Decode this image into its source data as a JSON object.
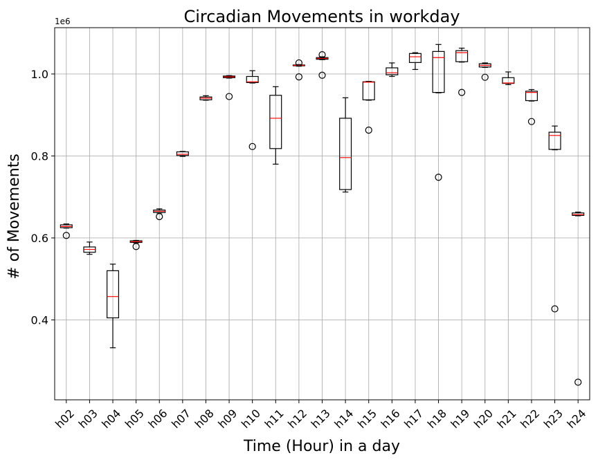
{
  "chart_data": {
    "type": "boxplot",
    "title": "Circadian Movements in workday",
    "xlabel": "Time (Hour) in a day",
    "ylabel": "# of Movements",
    "y_multiplier_label": "1e6",
    "ylim": [
      0.205,
      1.113
    ],
    "yticks": [
      0.4,
      0.6,
      0.8,
      1.0
    ],
    "ytick_labels": [
      "0.4",
      "0.6",
      "0.8",
      "1.0"
    ],
    "grid": true,
    "colors": {
      "box": "#000000",
      "median": "#ff0000",
      "grid": "#b0b0b0"
    },
    "boxes": [
      {
        "label": "h02",
        "whisker_low": 0.624,
        "q1": 0.625,
        "median": 0.628,
        "q3": 0.632,
        "whisker_high": 0.634,
        "outliers": [
          0.606
        ]
      },
      {
        "label": "h03",
        "whisker_low": 0.56,
        "q1": 0.565,
        "median": 0.572,
        "q3": 0.578,
        "whisker_high": 0.59,
        "outliers": []
      },
      {
        "label": "h04",
        "whisker_low": 0.332,
        "q1": 0.405,
        "median": 0.457,
        "q3": 0.52,
        "whisker_high": 0.536,
        "outliers": []
      },
      {
        "label": "h05",
        "whisker_low": 0.588,
        "q1": 0.589,
        "median": 0.591,
        "q3": 0.593,
        "whisker_high": 0.594,
        "outliers": [
          0.579
        ]
      },
      {
        "label": "h06",
        "whisker_low": 0.661,
        "q1": 0.662,
        "median": 0.665,
        "q3": 0.668,
        "whisker_high": 0.671,
        "outliers": [
          0.652
        ]
      },
      {
        "label": "h07",
        "whisker_low": 0.799,
        "q1": 0.801,
        "median": 0.804,
        "q3": 0.81,
        "whisker_high": 0.811,
        "outliers": []
      },
      {
        "label": "h08",
        "whisker_low": 0.936,
        "q1": 0.937,
        "median": 0.941,
        "q3": 0.944,
        "whisker_high": 0.947,
        "outliers": []
      },
      {
        "label": "h09",
        "whisker_low": 0.99,
        "q1": 0.991,
        "median": 0.993,
        "q3": 0.995,
        "whisker_high": 0.996,
        "outliers": [
          0.945
        ]
      },
      {
        "label": "h10",
        "whisker_low": 0.978,
        "q1": 0.979,
        "median": 0.981,
        "q3": 0.994,
        "whisker_high": 1.008,
        "outliers": [
          0.823
        ]
      },
      {
        "label": "h11",
        "whisker_low": 0.78,
        "q1": 0.818,
        "median": 0.892,
        "q3": 0.948,
        "whisker_high": 0.969,
        "outliers": []
      },
      {
        "label": "h12",
        "whisker_low": 1.019,
        "q1": 1.02,
        "median": 1.021,
        "q3": 1.022,
        "whisker_high": 1.023,
        "outliers": [
          0.993,
          1.027
        ]
      },
      {
        "label": "h13",
        "whisker_low": 1.035,
        "q1": 1.036,
        "median": 1.038,
        "q3": 1.04,
        "whisker_high": 1.042,
        "outliers": [
          0.997,
          1.047
        ]
      },
      {
        "label": "h14",
        "whisker_low": 0.712,
        "q1": 0.718,
        "median": 0.796,
        "q3": 0.892,
        "whisker_high": 0.942,
        "outliers": []
      },
      {
        "label": "h15",
        "whisker_low": 0.936,
        "q1": 0.937,
        "median": 0.98,
        "q3": 0.981,
        "whisker_high": 0.982,
        "outliers": [
          0.863
        ]
      },
      {
        "label": "h16",
        "whisker_low": 0.994,
        "q1": 0.998,
        "median": 1.003,
        "q3": 1.015,
        "whisker_high": 1.027,
        "outliers": []
      },
      {
        "label": "h17",
        "whisker_low": 1.011,
        "q1": 1.028,
        "median": 1.042,
        "q3": 1.05,
        "whisker_high": 1.052,
        "outliers": []
      },
      {
        "label": "h18",
        "whisker_low": 0.954,
        "q1": 0.955,
        "median": 1.04,
        "q3": 1.055,
        "whisker_high": 1.072,
        "outliers": [
          0.748
        ]
      },
      {
        "label": "h19",
        "whisker_low": 1.029,
        "q1": 1.03,
        "median": 1.052,
        "q3": 1.057,
        "whisker_high": 1.063,
        "outliers": [
          0.955
        ]
      },
      {
        "label": "h20",
        "whisker_low": 1.016,
        "q1": 1.017,
        "median": 1.021,
        "q3": 1.025,
        "whisker_high": 1.027,
        "outliers": [
          0.992
        ]
      },
      {
        "label": "h21",
        "whisker_low": 0.974,
        "q1": 0.977,
        "median": 0.978,
        "q3": 0.991,
        "whisker_high": 1.005,
        "outliers": []
      },
      {
        "label": "h22",
        "whisker_low": 0.934,
        "q1": 0.935,
        "median": 0.955,
        "q3": 0.958,
        "whisker_high": 0.962,
        "outliers": [
          0.884
        ]
      },
      {
        "label": "h23",
        "whisker_low": 0.815,
        "q1": 0.816,
        "median": 0.85,
        "q3": 0.858,
        "whisker_high": 0.873,
        "outliers": [
          0.427
        ]
      },
      {
        "label": "h24",
        "whisker_low": 0.654,
        "q1": 0.655,
        "median": 0.657,
        "q3": 0.661,
        "whisker_high": 0.663,
        "outliers": [
          0.248
        ]
      }
    ]
  }
}
